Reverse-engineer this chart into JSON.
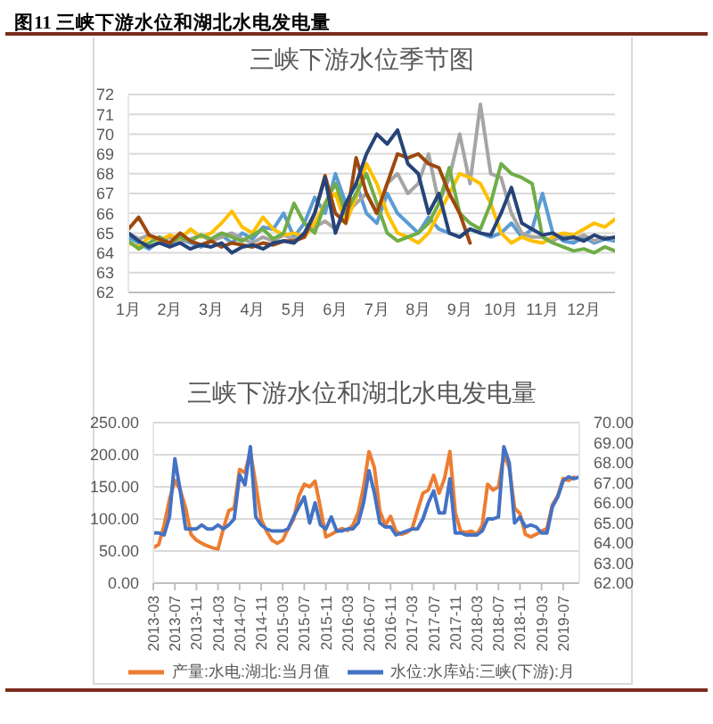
{
  "chart_data": [
    {
      "type": "line",
      "title": "图11 三峡下游水位和湖北水电发电量",
      "subtitle": "三峡下游水位季节图",
      "categories": [
        "1月",
        null,
        null,
        null,
        "2月",
        null,
        null,
        null,
        "3月",
        null,
        null,
        null,
        "4月",
        null,
        null,
        null,
        "5月",
        null,
        null,
        null,
        "6月",
        null,
        null,
        null,
        "7月",
        null,
        null,
        null,
        "8月",
        null,
        null,
        null,
        "9月",
        null,
        null,
        null,
        "10月",
        null,
        null,
        null,
        "11月",
        null,
        null,
        null,
        "12月",
        null,
        null,
        null
      ],
      "series": [
        {
          "color": "#5b9bd5",
          "values": [
            64.8,
            64.5,
            64.2,
            64.6,
            64.4,
            64.7,
            64.5,
            64.3,
            64.6,
            64.9,
            64.5,
            65.0,
            64.7,
            65.3,
            65.2,
            66.0,
            64.8,
            65.5,
            66.8,
            66.0,
            68.0,
            66.5,
            67.5,
            66.0,
            65.5,
            67.0,
            66.0,
            65.5,
            65.0,
            65.8,
            65.2,
            65.0,
            64.8,
            65.2,
            65.0,
            64.8,
            65.0,
            65.5,
            64.8,
            65.2,
            67.0,
            65.0,
            64.6,
            64.5,
            64.8,
            64.5,
            64.7,
            64.6
          ]
        },
        {
          "color": "#a5a5a5",
          "values": [
            65.0,
            64.7,
            64.9,
            64.6,
            64.8,
            64.5,
            64.7,
            64.9,
            64.6,
            64.8,
            65.0,
            64.7,
            64.5,
            64.8,
            64.6,
            64.9,
            64.7,
            65.0,
            65.3,
            65.6,
            65.2,
            66.0,
            66.5,
            67.0,
            66.0,
            67.5,
            68.0,
            67.0,
            67.5,
            69.0,
            66.5,
            67.8,
            70.0,
            67.5,
            71.5,
            68.0,
            67.8,
            66.0,
            65.0,
            64.8,
            64.8,
            64.6,
            64.9,
            64.7,
            64.9,
            64.6,
            64.8,
            64.7
          ]
        },
        {
          "color": "#ffc000",
          "values": [
            64.5,
            64.3,
            64.8,
            64.6,
            64.9,
            64.7,
            65.2,
            64.8,
            65.0,
            65.5,
            66.1,
            65.3,
            65.0,
            65.8,
            65.2,
            64.9,
            65.0,
            64.8,
            65.5,
            66.5,
            67.0,
            65.5,
            66.8,
            68.5,
            67.5,
            66.0,
            65.0,
            64.8,
            64.5,
            65.0,
            66.0,
            67.0,
            68.0,
            67.8,
            67.5,
            66.5,
            65.0,
            64.5,
            64.8,
            64.6,
            64.5,
            64.8,
            65.0,
            64.9,
            65.2,
            65.5,
            65.3,
            65.7
          ]
        },
        {
          "color": "#70ad47",
          "values": [
            64.6,
            64.2,
            64.5,
            64.8,
            64.5,
            64.8,
            64.6,
            64.9,
            64.7,
            65.0,
            64.8,
            64.6,
            64.9,
            65.2,
            64.7,
            65.0,
            66.5,
            65.5,
            65.0,
            66.5,
            67.5,
            66.0,
            67.0,
            68.0,
            66.5,
            65.0,
            64.6,
            64.8,
            65.0,
            65.5,
            66.5,
            68.3,
            66.0,
            65.5,
            65.2,
            66.5,
            68.5,
            68.0,
            67.8,
            67.5,
            64.8,
            64.5,
            64.3,
            64.1,
            64.2,
            64.0,
            64.3,
            64.1
          ]
        },
        {
          "color": "#9e480e",
          "values": [
            65.2,
            65.8,
            64.9,
            64.7,
            64.5,
            65.0,
            64.6,
            64.4,
            64.6,
            64.3,
            64.5,
            64.4,
            64.3,
            64.5,
            64.4,
            64.6,
            64.6,
            64.8,
            66.0,
            67.9,
            66.0,
            65.5,
            68.8,
            67.0,
            66.0,
            67.5,
            69.0,
            68.8,
            69.0,
            68.5,
            68.3,
            67.0,
            66.0,
            64.5,
            null,
            null,
            null,
            null,
            null,
            null,
            null,
            null,
            null,
            null,
            null,
            null,
            null,
            null
          ]
        },
        {
          "color": "#264478",
          "values": [
            65.0,
            64.6,
            64.3,
            64.5,
            64.3,
            64.5,
            64.2,
            64.4,
            64.3,
            64.5,
            64.0,
            64.3,
            64.4,
            64.2,
            64.5,
            64.6,
            64.5,
            65.0,
            66.0,
            67.8,
            65.0,
            66.5,
            67.5,
            69.0,
            70.0,
            69.5,
            70.2,
            68.5,
            68.0,
            66.0,
            67.0,
            65.0,
            64.8,
            65.2,
            65.0,
            64.9,
            66.0,
            67.3,
            65.5,
            65.2,
            64.9,
            65.0,
            64.7,
            64.8,
            64.6,
            64.9,
            64.7,
            64.8
          ]
        }
      ],
      "ylim": [
        62,
        72
      ],
      "yticks": [
        62,
        63,
        64,
        65,
        66,
        67,
        68,
        69,
        70,
        71,
        72
      ],
      "grid": "y",
      "marker": "none"
    },
    {
      "type": "line",
      "title": "三峡下游水位和湖北水电发电量",
      "categories": [
        "2013-03",
        null,
        null,
        null,
        "2013-07",
        null,
        null,
        null,
        "2013-11",
        null,
        null,
        null,
        "2014-03",
        null,
        null,
        null,
        "2014-07",
        null,
        null,
        null,
        "2014-11",
        null,
        null,
        null,
        "2015-03",
        null,
        null,
        null,
        "2015-07",
        null,
        null,
        null,
        "2015-11",
        null,
        null,
        null,
        "2016-03",
        null,
        null,
        null,
        "2016-07",
        null,
        null,
        null,
        "2016-11",
        null,
        null,
        null,
        "2017-03",
        null,
        null,
        null,
        "2017-07",
        null,
        null,
        null,
        "2017-11",
        null,
        null,
        null,
        "2018-03",
        null,
        null,
        null,
        "2018-07",
        null,
        null,
        null,
        "2018-11",
        null,
        null,
        null,
        "2019-03",
        null,
        null,
        null,
        "2019-07",
        null,
        null,
        null
      ],
      "series": [
        {
          "name": "产量:水电:湖北:当月值",
          "color": "#ed7d31",
          "values": [
            55,
            60,
            90,
            130,
            160,
            145,
            117,
            76,
            67,
            62,
            58,
            55,
            53,
            85,
            113,
            117,
            177,
            172,
            205,
            154,
            99,
            81,
            67,
            62,
            67,
            85,
            99,
            136,
            154,
            150,
            159,
            117,
            72,
            76,
            81,
            85,
            82,
            90,
            110,
            150,
            205,
            180,
            113,
            90,
            104,
            81,
            76,
            79,
            85,
            113,
            140,
            145,
            168,
            140,
            163,
            205,
            110,
            81,
            79,
            81,
            76,
            90,
            154,
            145,
            150,
            200,
            180,
            117,
            108,
            76,
            72,
            76,
            81,
            85,
            122,
            136,
            163,
            160,
            165,
            null
          ]
        },
        {
          "name": "水位:水库站:三峡(下游):月",
          "color": "#4472c4",
          "axis": "y2",
          "values": [
            64.5,
            64.5,
            64.4,
            65.3,
            68.2,
            66.6,
            64.7,
            64.7,
            64.7,
            64.9,
            64.7,
            64.7,
            64.9,
            64.7,
            64.9,
            65.2,
            67.4,
            66.9,
            68.8,
            65.3,
            64.9,
            64.7,
            64.6,
            64.6,
            64.6,
            64.7,
            65.3,
            65.8,
            66.3,
            65.0,
            66.0,
            64.9,
            64.7,
            65.3,
            64.6,
            64.6,
            64.7,
            64.7,
            65.0,
            66.0,
            67.6,
            66.5,
            65.0,
            64.8,
            64.8,
            64.4,
            64.5,
            64.6,
            64.7,
            64.7,
            65.2,
            66.0,
            66.6,
            65.5,
            65.5,
            67.2,
            64.5,
            64.5,
            64.4,
            64.4,
            64.4,
            64.6,
            65.2,
            65.2,
            65.3,
            68.8,
            68.0,
            65.0,
            65.3,
            64.8,
            64.9,
            64.8,
            64.5,
            64.5,
            65.8,
            66.3,
            67.1,
            67.3,
            67.2,
            67.3
          ]
        }
      ],
      "ylim": [
        0,
        250
      ],
      "yticks": [
        {
          "value": 0,
          "label": "0.00"
        },
        {
          "value": 50,
          "label": "50.00"
        },
        {
          "value": 100,
          "label": "100.00"
        },
        {
          "value": 150,
          "label": "150.00"
        },
        {
          "value": 200,
          "label": "200.00"
        },
        {
          "value": 250,
          "label": "250.00"
        }
      ],
      "y2lim": [
        62,
        70
      ],
      "y2ticks": [
        {
          "value": 62,
          "label": "62.00"
        },
        {
          "value": 63,
          "label": "63.00"
        },
        {
          "value": 64,
          "label": "64.00"
        },
        {
          "value": 65,
          "label": "65.00"
        },
        {
          "value": 66,
          "label": "66.00"
        },
        {
          "value": 67,
          "label": "67.00"
        },
        {
          "value": 68,
          "label": "68.00"
        },
        {
          "value": 69,
          "label": "69.00"
        },
        {
          "value": 70,
          "label": "70.00"
        }
      ],
      "grid": "y",
      "legend": "bottom",
      "marker": "none"
    }
  ]
}
